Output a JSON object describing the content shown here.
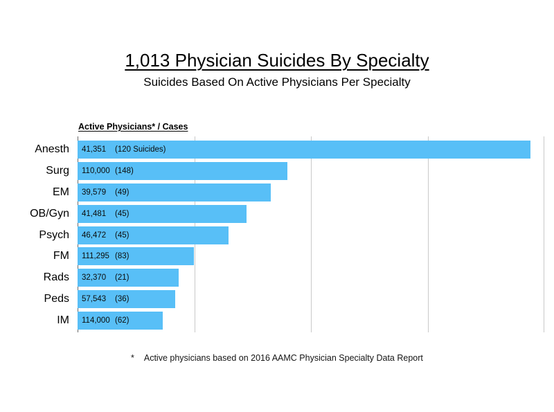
{
  "slide": {
    "title": "1,013 Physician Suicides By Specialty",
    "subtitle": "Suicides Based On Active Physicians Per Specialty",
    "footnote": {
      "marker": "*",
      "text": "Active physicians based on 2016 AAMC Physician Specialty Data Report"
    }
  },
  "chart_data": {
    "type": "bar",
    "orientation": "horizontal",
    "title": "1,013 Physician Suicides By Specialty",
    "subtitle": "Suicides Based On Active Physicians Per Specialty",
    "column_header": "Active Physicians* / Cases",
    "grid": true,
    "gridline_positions_pct": [
      0,
      25,
      50,
      75,
      100
    ],
    "bar_scale_note": "bar length proportional to suicide cases per active physician; longest bar (Anesth) spans ~97% of plot width",
    "colors": {
      "bar": "#58BFF7",
      "gridline": "#C9C9C9",
      "axis": "#6A6A6A",
      "text": "#000000"
    },
    "categories": [
      "Anesth",
      "Surg",
      "EM",
      "OB/Gyn",
      "Psych",
      "FM",
      "Rads",
      "Peds",
      "IM"
    ],
    "rows": [
      {
        "specialty": "Anesth",
        "active_physicians": "41,351",
        "active_physicians_num": 41351,
        "cases_label": "(120 Suicides)",
        "cases_num": 120
      },
      {
        "specialty": "Surg",
        "active_physicians": "110,000",
        "active_physicians_num": 110000,
        "cases_label": "(148)",
        "cases_num": 148
      },
      {
        "specialty": "EM",
        "active_physicians": "39,579",
        "active_physicians_num": 39579,
        "cases_label": "(49)",
        "cases_num": 49
      },
      {
        "specialty": "OB/Gyn",
        "active_physicians": "41,481",
        "active_physicians_num": 41481,
        "cases_label": "(45)",
        "cases_num": 45
      },
      {
        "specialty": "Psych",
        "active_physicians": "46,472",
        "active_physicians_num": 46472,
        "cases_label": "(45)",
        "cases_num": 45
      },
      {
        "specialty": "FM",
        "active_physicians": "111,295",
        "active_physicians_num": 111295,
        "cases_label": "(83)",
        "cases_num": 83
      },
      {
        "specialty": "Rads",
        "active_physicians": "32,370",
        "active_physicians_num": 32370,
        "cases_label": "(21)",
        "cases_num": 21
      },
      {
        "specialty": "Peds",
        "active_physicians": "57,543",
        "active_physicians_num": 57543,
        "cases_label": "(36)",
        "cases_num": 36
      },
      {
        "specialty": "IM",
        "active_physicians": "114,000",
        "active_physicians_num": 114000,
        "cases_label": "(62)",
        "cases_num": 62
      }
    ]
  }
}
